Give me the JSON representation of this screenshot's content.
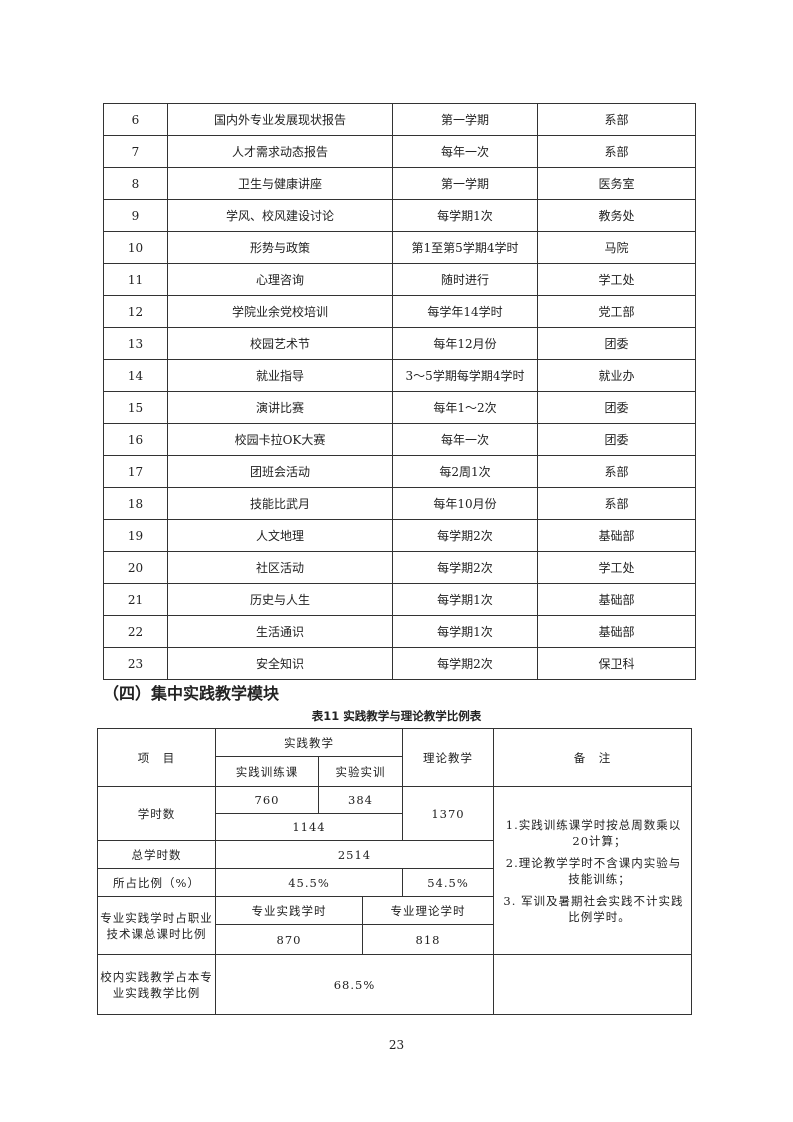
{
  "activities_table": {
    "rows": [
      [
        "6",
        "国内外专业发展现状报告",
        "第一学期",
        "系部"
      ],
      [
        "7",
        "人才需求动态报告",
        "每年一次",
        "系部"
      ],
      [
        "8",
        "卫生与健康讲座",
        "第一学期",
        "医务室"
      ],
      [
        "9",
        "学风、校风建设讨论",
        "每学期1次",
        "教务处"
      ],
      [
        "10",
        "形势与政策",
        "第1至第5学期4学时",
        "马院"
      ],
      [
        "11",
        "心理咨询",
        "随时进行",
        "学工处"
      ],
      [
        "12",
        "学院业余党校培训",
        "每学年14学时",
        "党工部"
      ],
      [
        "13",
        "校园艺术节",
        "每年12月份",
        "团委"
      ],
      [
        "14",
        "就业指导",
        "3～5学期每学期4学时",
        "就业办"
      ],
      [
        "15",
        "演讲比赛",
        "每年1～2次",
        "团委"
      ],
      [
        "16",
        "校园卡拉OK大赛",
        "每年一次",
        "团委"
      ],
      [
        "17",
        "团班会活动",
        "每2周1次",
        "系部"
      ],
      [
        "18",
        "技能比武月",
        "每年10月份",
        "系部"
      ],
      [
        "19",
        "人文地理",
        "每学期2次",
        "基础部"
      ],
      [
        "20",
        "社区活动",
        "每学期2次",
        "学工处"
      ],
      [
        "21",
        "历史与人生",
        "每学期1次",
        "基础部"
      ],
      [
        "22",
        "生活通识",
        "每学期1次",
        "基础部"
      ],
      [
        "23",
        "安全知识",
        "每学期2次",
        "保卫科"
      ]
    ]
  },
  "section_heading": "（四）集中实践教学模块",
  "ratio_table": {
    "caption": "表11  实践教学与理论教学比例表",
    "h_item": "项　目",
    "h_practice": "实践教学",
    "h_practice_training": "实践训练课",
    "h_lab": "实验实训",
    "h_theory": "理论教学",
    "h_remarks": "备　注",
    "hours_label": "学时数",
    "hours_training": "760",
    "hours_lab": "384",
    "hours_practice_total": "1144",
    "hours_theory": "1370",
    "total_label": "总学时数",
    "total_value": "2514",
    "ratio_label": "所占比例（%）",
    "ratio_practice": "45.5%",
    "ratio_theory": "54.5%",
    "prof_label": "专业实践学时占职业技术课总课时比例",
    "prof_practice_h": "专业实践学时",
    "prof_theory_h": "专业理论学时",
    "prof_practice_v": "870",
    "prof_theory_v": "818",
    "campus_label": "校内实践教学占本专业实践教学比例",
    "campus_value": "68.5%",
    "notes": [
      "1.实践训练课学时按总周数乘以20计算；",
      "2.理论教学学时不含课内实验与技能训练；",
      "3. 军训及暑期社会实践不计实践比例学时。"
    ]
  },
  "page_number": "23"
}
